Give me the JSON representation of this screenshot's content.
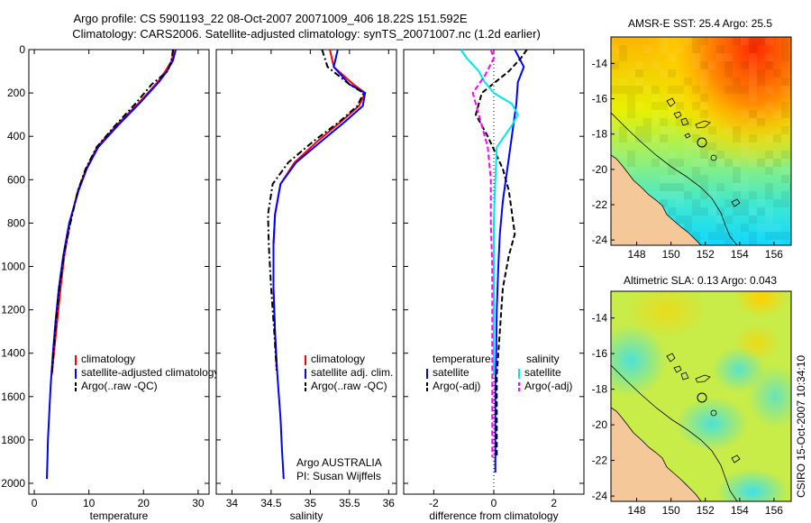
{
  "header": {
    "line1": "Argo profile: CS 5901193_22 08-Oct-2007 20071009_406 18.22S 151.592E",
    "line2": "Climatology: CARS2006. Satellite-adjusted climatology: synTS_20071007.nc (1.2d earlier)"
  },
  "colors": {
    "climatology": "#ff0000",
    "satellite": "#0000ff",
    "argo": "#000000",
    "sal_satellite": "#00e5e5",
    "sal_argo": "#ff00ff",
    "land": "#f5c89a"
  },
  "chart_data": [
    {
      "type": "line",
      "name": "temperature-profile",
      "xlabel": "temperature",
      "ylabel": "",
      "xlim": [
        -1,
        32
      ],
      "ylim": [
        2050,
        0
      ],
      "xticks": [
        "0",
        "10",
        "20",
        "30"
      ],
      "yticks": [
        "0",
        "200",
        "400",
        "600",
        "800",
        "1000",
        "1200",
        "1400",
        "1600",
        "1800",
        "2000"
      ],
      "legend": [
        "climatology",
        "satellite-adjusted climatology",
        "Argo(..raw -QC)"
      ],
      "series": [
        {
          "name": "climatology",
          "style": "solid",
          "color": "#ff0000",
          "x": [
            25.5,
            25.2,
            24.0,
            22.6,
            19.0,
            15.0,
            11.5,
            9.5,
            8.0,
            6.5,
            5.5,
            4.8,
            4.2,
            3.6,
            3.2
          ],
          "y": [
            0,
            50,
            100,
            150,
            250,
            350,
            450,
            550,
            650,
            800,
            950,
            1100,
            1250,
            1400,
            1500
          ]
        },
        {
          "name": "satellite-adjusted climatology",
          "style": "solid",
          "color": "#0000ff",
          "x": [
            25.9,
            25.4,
            24.3,
            22.8,
            19.2,
            15.3,
            11.7,
            9.6,
            8.1,
            6.4,
            5.3,
            4.5,
            3.9,
            3.4,
            3.0,
            2.7,
            2.5,
            2.4,
            2.3
          ],
          "y": [
            0,
            50,
            100,
            150,
            250,
            350,
            450,
            550,
            650,
            800,
            950,
            1100,
            1250,
            1400,
            1550,
            1700,
            1800,
            1900,
            1980
          ]
        },
        {
          "name": "Argo(..raw -QC)",
          "style": "dashdot",
          "color": "#000000",
          "x": [
            25.4,
            25.1,
            24.4,
            21.5,
            18.5,
            14.8,
            11.4,
            9.4,
            8.0,
            6.6,
            5.4,
            4.6,
            4.0,
            3.5,
            3.2
          ],
          "y": [
            0,
            50,
            100,
            160,
            250,
            350,
            450,
            550,
            650,
            800,
            950,
            1100,
            1250,
            1400,
            1500
          ]
        }
      ]
    },
    {
      "type": "line",
      "name": "salinity-profile",
      "xlabel": "salinity",
      "xlim": [
        33.8,
        36.1
      ],
      "ylim": [
        2050,
        0
      ],
      "xticks": [
        "34",
        "34.5",
        "35",
        "35.5",
        "36"
      ],
      "legend": [
        "climatology",
        "satellite adj. clim.",
        "Argo(..raw -QC)"
      ],
      "annotation": [
        "Argo AUSTRALIA",
        "PI: Susan Wijffels"
      ],
      "series": [
        {
          "name": "climatology",
          "style": "solid",
          "color": "#ff0000",
          "x": [
            35.25,
            35.3,
            35.55,
            35.7,
            35.62,
            35.4,
            35.1,
            34.8,
            34.62,
            34.55,
            34.53,
            34.53,
            34.55,
            34.57
          ],
          "y": [
            0,
            80,
            160,
            200,
            260,
            330,
            420,
            520,
            620,
            760,
            900,
            1100,
            1300,
            1480
          ]
        },
        {
          "name": "satellite adj. clim.",
          "style": "solid",
          "color": "#0000ff",
          "x": [
            35.35,
            35.3,
            35.5,
            35.7,
            35.67,
            35.45,
            35.15,
            34.82,
            34.62,
            34.55,
            34.53,
            34.53,
            34.55,
            34.58,
            34.62,
            34.64,
            34.66
          ],
          "y": [
            0,
            80,
            160,
            200,
            260,
            330,
            420,
            520,
            620,
            760,
            900,
            1100,
            1300,
            1500,
            1700,
            1850,
            1980
          ]
        },
        {
          "name": "Argo(..raw -QC)",
          "style": "dashdot",
          "color": "#000000",
          "x": [
            35.15,
            35.22,
            35.5,
            35.68,
            35.6,
            35.38,
            35.05,
            34.72,
            34.52,
            34.46,
            34.47,
            34.5,
            34.54,
            34.57
          ],
          "y": [
            0,
            80,
            160,
            200,
            260,
            330,
            420,
            520,
            620,
            760,
            900,
            1100,
            1300,
            1480
          ]
        }
      ]
    },
    {
      "type": "line",
      "name": "difference-profile",
      "xlabel": "difference from climatology",
      "xlim": [
        -3,
        3
      ],
      "ylim": [
        2050,
        0
      ],
      "xticks": [
        "-2",
        "0",
        "2"
      ],
      "legend_temperature_title": "temperature",
      "legend_salinity_title": "salinity",
      "legend_temperature": [
        "satellite",
        "Argo(-adj)"
      ],
      "legend_salinity": [
        "satellite",
        "Argo(-adj)"
      ],
      "series": [
        {
          "name": "temperature satellite",
          "style": "solid",
          "color": "#0000ff",
          "x": [
            0.7,
            0.85,
            1.0,
            0.8,
            0.75,
            0.6,
            0.5,
            0.4,
            0.3,
            0.2,
            0.15,
            0.1,
            0.08,
            0.05,
            0.05,
            0.05,
            0.05
          ],
          "y": [
            0,
            40,
            80,
            150,
            250,
            400,
            500,
            600,
            700,
            850,
            1000,
            1200,
            1400,
            1550,
            1700,
            1850,
            1950
          ]
        },
        {
          "name": "temperature Argo(-adj)",
          "style": "dashed",
          "color": "#000000",
          "x": [
            1.1,
            0.9,
            0.5,
            -0.4,
            -0.6,
            -0.2,
            0.3,
            0.5,
            0.6,
            0.7,
            0.5,
            0.3,
            0.2,
            0.1,
            0.1
          ],
          "y": [
            0,
            40,
            100,
            200,
            300,
            400,
            550,
            650,
            750,
            850,
            950,
            1100,
            1300,
            1500,
            1880
          ]
        },
        {
          "name": "salinity satellite",
          "style": "solid",
          "color": "#00e5e5",
          "x": [
            -1.1,
            -0.9,
            -0.5,
            -0.3,
            0.0,
            0.6,
            0.8,
            0.6,
            0.1,
            0.05,
            0.0,
            0.0,
            0.0,
            0.0
          ],
          "y": [
            0,
            40,
            100,
            150,
            200,
            250,
            300,
            350,
            450,
            600,
            800,
            1000,
            1300,
            1500
          ]
        },
        {
          "name": "salinity Argo(-adj)",
          "style": "dashed",
          "color": "#ff00ff",
          "x": [
            -0.1,
            0.0,
            -0.3,
            -0.7,
            -0.5,
            -0.2,
            -0.1,
            -0.1,
            -0.05,
            -0.05,
            -0.05,
            -0.05
          ],
          "y": [
            0,
            40,
            120,
            200,
            300,
            450,
            600,
            800,
            1000,
            1300,
            1600,
            1880
          ]
        }
      ]
    },
    {
      "type": "heatmap",
      "name": "sst-map",
      "title": "AMSR-E SST: 25.4 Argo: 25.5",
      "xlim": [
        146.5,
        157
      ],
      "ylim": [
        -24.3,
        -12.5
      ],
      "xticks": [
        "148",
        "150",
        "152",
        "154",
        "156"
      ],
      "yticks": [
        "-14",
        "-16",
        "-18",
        "-20",
        "-22",
        "-24"
      ],
      "argo_lon": 151.592,
      "argo_lat": -18.22
    },
    {
      "type": "heatmap",
      "name": "sla-map",
      "title": "Altimetric SLA: 0.13 Argo: 0.043",
      "xlim": [
        146.5,
        157
      ],
      "ylim": [
        -24.3,
        -12.5
      ],
      "xticks": [
        "148",
        "150",
        "152",
        "154",
        "156"
      ],
      "yticks": [
        "-14",
        "-16",
        "-18",
        "-20",
        "-22",
        "-24"
      ],
      "argo_lon": 151.592,
      "argo_lat": -18.22
    }
  ],
  "footer": {
    "stamp": "CSIRO 15-Oct-2007 10:34:10"
  }
}
